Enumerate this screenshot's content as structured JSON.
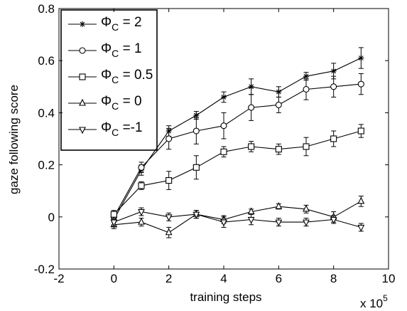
{
  "chart_data": {
    "type": "line",
    "title": "",
    "xlabel": "training steps",
    "ylabel": "gaze following score",
    "x_multiplier_label": "x 10",
    "x_multiplier_exp": "5",
    "xlim": [
      -2,
      10
    ],
    "ylim": [
      -0.2,
      0.8
    ],
    "x_ticks": [
      -2,
      0,
      2,
      4,
      6,
      8,
      10
    ],
    "y_ticks": [
      -0.2,
      0,
      0.2,
      0.4,
      0.6,
      0.8
    ],
    "x_tick_labels": [
      "-2",
      "0",
      "2",
      "4",
      "6",
      "8",
      "10"
    ],
    "y_tick_labels": [
      "-0.2",
      "0",
      "0.2",
      "0.4",
      "0.6",
      "0.8"
    ],
    "grid": false,
    "legend_position": "top-left",
    "x": [
      0,
      1,
      2,
      3,
      4,
      5,
      6,
      7,
      8,
      9
    ],
    "series": [
      {
        "name_symbol": "Φ",
        "name_sub": "C",
        "name_value": " = 2",
        "marker": "star",
        "values": [
          -0.01,
          0.18,
          0.33,
          0.39,
          0.46,
          0.5,
          0.48,
          0.54,
          0.56,
          0.61
        ],
        "errors": [
          0.02,
          0.02,
          0.02,
          0.015,
          0.02,
          0.03,
          0.02,
          0.015,
          0.03,
          0.04
        ]
      },
      {
        "name_symbol": "Φ",
        "name_sub": "C",
        "name_value": " = 1",
        "marker": "circle",
        "values": [
          0.0,
          0.19,
          0.3,
          0.33,
          0.35,
          0.42,
          0.43,
          0.49,
          0.5,
          0.51
        ],
        "errors": [
          0.02,
          0.02,
          0.04,
          0.05,
          0.05,
          0.05,
          0.03,
          0.04,
          0.04,
          0.04
        ]
      },
      {
        "name_symbol": "Φ",
        "name_sub": "C",
        "name_value": " = 0.5",
        "marker": "square",
        "values": [
          0.01,
          0.12,
          0.14,
          0.19,
          0.25,
          0.27,
          0.26,
          0.27,
          0.3,
          0.33
        ],
        "errors": [
          0.015,
          0.015,
          0.035,
          0.045,
          0.02,
          0.02,
          0.02,
          0.035,
          0.03,
          0.025
        ]
      },
      {
        "name_symbol": "Φ",
        "name_sub": "C",
        "name_value": " = 0",
        "marker": "triangle-up",
        "values": [
          -0.03,
          -0.02,
          -0.06,
          0.01,
          -0.01,
          0.02,
          0.04,
          0.03,
          0.0,
          0.06
        ],
        "errors": [
          0.015,
          0.015,
          0.02,
          0.015,
          0.015,
          0.01,
          0.01,
          0.015,
          0.02,
          0.02
        ]
      },
      {
        "name_symbol": "Φ",
        "name_sub": "C",
        "name_value": " =-1",
        "marker": "triangle-down",
        "values": [
          -0.02,
          0.02,
          0.0,
          0.01,
          -0.02,
          -0.01,
          -0.02,
          -0.02,
          -0.01,
          -0.04
        ],
        "errors": [
          0.015,
          0.015,
          0.015,
          0.015,
          0.02,
          0.02,
          0.015,
          0.015,
          0.015,
          0.015
        ]
      }
    ]
  }
}
